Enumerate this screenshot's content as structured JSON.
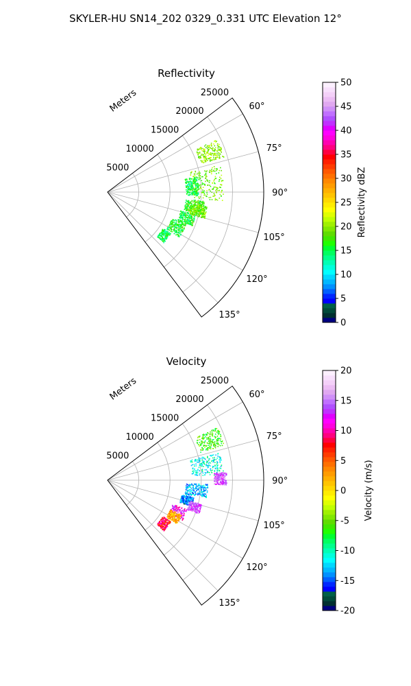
{
  "figure": {
    "title": "SKYLER-HU  SN14_202  0329_0.331 UTC Elevation 12°"
  },
  "chart_data": [
    {
      "type": "polar-sector",
      "title": "Reflectivity",
      "radial_label": "Meters",
      "radial_ticks": [
        5000,
        10000,
        15000,
        20000,
        25000
      ],
      "radial_tick_labels": [
        "5000",
        "10000",
        "15000",
        "20000",
        "25000"
      ],
      "rlim": [
        0,
        25000
      ],
      "azimuth_range_deg": [
        53,
        143
      ],
      "azimuth_ticks_deg": [
        60,
        75,
        90,
        105,
        120,
        135
      ],
      "azimuth_tick_labels": [
        "60°",
        "75°",
        "90°",
        "105°",
        "120°",
        "135°"
      ],
      "grid": true,
      "colorbar": {
        "label": "Reflectivity dBZ",
        "range": [
          0,
          50
        ],
        "ticks": [
          0,
          5,
          10,
          15,
          20,
          25,
          30,
          35,
          40,
          45,
          50
        ],
        "tick_labels": [
          "0",
          "5",
          "10",
          "15",
          "20",
          "25",
          "30",
          "35",
          "40",
          "45",
          "50"
        ],
        "colors": [
          "#000080",
          "#003030",
          "#004a3a",
          "#006048",
          "#0000ff",
          "#0028ff",
          "#0060ff",
          "#0090ff",
          "#00b8ff",
          "#00d8ff",
          "#00ffff",
          "#00ffdc",
          "#00ffb4",
          "#00ff8c",
          "#00ff60",
          "#00ff30",
          "#20ff00",
          "#40e800",
          "#60dc00",
          "#80e800",
          "#a0f000",
          "#c0ff00",
          "#e0ff00",
          "#ffff00",
          "#ffec00",
          "#ffd800",
          "#ffc400",
          "#ffb000",
          "#ff9c00",
          "#ff8800",
          "#ff7000",
          "#ff5800",
          "#ff3c00",
          "#ff2000",
          "#ff0000",
          "#ff0040",
          "#ff0080",
          "#ff00b0",
          "#ff00e0",
          "#ff00ff",
          "#e000ff",
          "#c030ff",
          "#b050ff",
          "#c070ff",
          "#d090f8",
          "#e0a8f0",
          "#ecbcf4",
          "#f4d0f8",
          "#f8e0fc",
          "#fcf0fe"
        ]
      },
      "echo_regions": [
        {
          "az": [
            64,
            73
          ],
          "r": [
            15500,
            19500
          ],
          "value": 20
        },
        {
          "az": [
            76,
            94
          ],
          "r": [
            13500,
            18500
          ],
          "value": 19
        },
        {
          "az": [
            95,
            103
          ],
          "r": [
            12500,
            15500
          ],
          "value": 17
        },
        {
          "az": [
            104,
            112
          ],
          "r": [
            12000,
            14500
          ],
          "value": 16
        },
        {
          "az": [
            112,
            122
          ],
          "r": [
            11000,
            13500
          ],
          "value": 16
        },
        {
          "az": [
            123,
            132
          ],
          "r": [
            10500,
            12000
          ],
          "value": 15
        },
        {
          "az": [
            80,
            92
          ],
          "r": [
            12500,
            14500
          ],
          "value": 15
        },
        {
          "az": [
            98,
            105
          ],
          "r": [
            13500,
            16000
          ],
          "value": 19
        }
      ]
    },
    {
      "type": "polar-sector",
      "title": "Velocity",
      "radial_label": "Meters",
      "radial_ticks": [
        5000,
        10000,
        15000,
        20000,
        25000
      ],
      "radial_tick_labels": [
        "5000",
        "10000",
        "15000",
        "20000",
        "25000"
      ],
      "rlim": [
        0,
        25000
      ],
      "azimuth_range_deg": [
        53,
        143
      ],
      "azimuth_ticks_deg": [
        60,
        75,
        90,
        105,
        120,
        135
      ],
      "azimuth_tick_labels": [
        "60°",
        "75°",
        "90°",
        "105°",
        "120°",
        "135°"
      ],
      "grid": true,
      "colorbar": {
        "label": "Velocity (m/s)",
        "range": [
          -20,
          20
        ],
        "ticks": [
          -20,
          -15,
          -10,
          -5,
          0,
          5,
          10,
          15,
          20
        ],
        "tick_labels": [
          "-20",
          "-15",
          "-10",
          "-5",
          "0",
          "5",
          "10",
          "15",
          "20"
        ],
        "colors": [
          "#000080",
          "#003030",
          "#004a3a",
          "#006048",
          "#0000ff",
          "#0028ff",
          "#0060ff",
          "#0090ff",
          "#00b8ff",
          "#00d8ff",
          "#00ffff",
          "#00ffdc",
          "#00ffb4",
          "#00ff8c",
          "#00ff60",
          "#00ff30",
          "#20ff00",
          "#40e800",
          "#60dc00",
          "#80e800",
          "#a0f000",
          "#c0ff00",
          "#e0ff00",
          "#ffff00",
          "#ffec00",
          "#ffd800",
          "#ffc400",
          "#ffb000",
          "#ff9c00",
          "#ff8800",
          "#ff7000",
          "#ff5800",
          "#ff3c00",
          "#ff2000",
          "#ff0000",
          "#ff0040",
          "#ff0080",
          "#ff00b0",
          "#ff00e0",
          "#ff00ff",
          "#e000ff",
          "#c030ff",
          "#b050ff",
          "#c070ff",
          "#d090f8",
          "#e0a8f0",
          "#ecbcf4",
          "#f4d0f8",
          "#f8e0fc",
          "#fcf0fe"
        ]
      },
      "echo_regions": [
        {
          "az": [
            64,
            73
          ],
          "r": [
            15500,
            19500
          ],
          "value": -6
        },
        {
          "az": [
            76,
            87
          ],
          "r": [
            13500,
            18500
          ],
          "value": -11
        },
        {
          "az": [
            86,
            92
          ],
          "r": [
            17000,
            19000
          ],
          "value": 14
        },
        {
          "az": [
            92,
            100
          ],
          "r": [
            12500,
            16000
          ],
          "value": -13
        },
        {
          "az": [
            101,
            107
          ],
          "r": [
            12000,
            14000
          ],
          "value": -14
        },
        {
          "az": [
            104,
            110
          ],
          "r": [
            13500,
            15500
          ],
          "value": 14
        },
        {
          "az": [
            110,
            118
          ],
          "r": [
            11000,
            13500
          ],
          "value": 12
        },
        {
          "az": [
            115,
            122
          ],
          "r": [
            11000,
            13000
          ],
          "value": 2
        },
        {
          "az": [
            123,
            132
          ],
          "r": [
            10500,
            12000
          ],
          "value": 8
        }
      ]
    }
  ]
}
